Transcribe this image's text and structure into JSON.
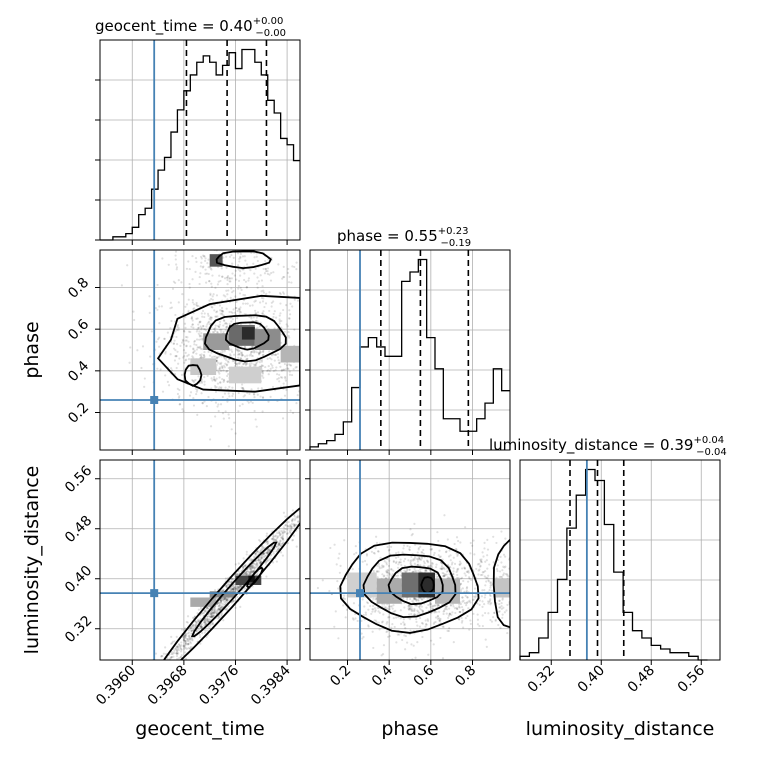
{
  "chart_data": {
    "type": "corner",
    "parameters": [
      "geocent_time",
      "phase",
      "luminosity_distance"
    ],
    "truths": {
      "geocent_time": 0.39634,
      "phase": 0.26,
      "luminosity_distance": 0.377
    },
    "truth_color": "#4682b4",
    "titles": [
      {
        "param": "geocent_time",
        "text": "geocent_time = 0.40",
        "sup": "+0.00",
        "sub": "−0.00"
      },
      {
        "param": "phase",
        "text": "phase = 0.55",
        "sup": "+0.23",
        "sub": "−0.19"
      },
      {
        "param": "luminosity_distance",
        "text": "luminosity_distance = 0.39",
        "sup": "+0.04",
        "sub": "−0.04"
      }
    ],
    "axis_labels": {
      "x": [
        "geocent_time",
        "phase",
        "luminosity_distance"
      ],
      "y": [
        "phase",
        "luminosity_distance"
      ]
    },
    "ranges": {
      "geocent_time": [
        0.3955,
        0.3986
      ],
      "phase": [
        0.02,
        0.98
      ],
      "luminosity_distance": [
        0.27,
        0.59
      ]
    },
    "ticks": {
      "geocent_time": [
        "0.3960",
        "0.3968",
        "0.3976",
        "0.3984"
      ],
      "phase": [
        "0.2",
        "0.4",
        "0.6",
        "0.8"
      ],
      "luminosity_distance": [
        "0.32",
        "0.40",
        "0.48",
        "0.56"
      ]
    },
    "histograms": {
      "geocent_time": {
        "edges": [
          0.3955,
          0.3956,
          0.3957,
          0.3958,
          0.3959,
          0.396,
          0.3961,
          0.3962,
          0.3963,
          0.3964,
          0.3965,
          0.3966,
          0.3967,
          0.3968,
          0.3969,
          0.397,
          0.3971,
          0.3972,
          0.3973,
          0.3974,
          0.3975,
          0.3976,
          0.3977,
          0.3978,
          0.3979,
          0.398,
          0.3981,
          0.3982,
          0.3983,
          0.3984,
          0.3985,
          0.3986
        ],
        "counts": [
          0,
          0,
          1,
          1,
          2,
          4,
          8,
          10,
          16,
          22,
          26,
          34,
          41,
          47,
          52,
          56,
          58,
          56,
          52,
          55,
          59,
          54,
          60,
          60,
          56,
          52,
          44,
          40,
          32,
          30,
          25
        ],
        "quantiles": [
          0.39684,
          0.39747,
          0.39808
        ]
      },
      "phase": {
        "edges": [
          0.02,
          0.06,
          0.1,
          0.14,
          0.18,
          0.22,
          0.26,
          0.3,
          0.34,
          0.38,
          0.42,
          0.46,
          0.5,
          0.54,
          0.58,
          0.62,
          0.66,
          0.7,
          0.74,
          0.78,
          0.82,
          0.86,
          0.9,
          0.94,
          0.98
        ],
        "counts": [
          1,
          2,
          3,
          5,
          9,
          20,
          33,
          36,
          33,
          30,
          30,
          54,
          57,
          61,
          36,
          26,
          10,
          10,
          6,
          6,
          10,
          15,
          26,
          19
        ],
        "quantiles": [
          0.36,
          0.55,
          0.78
        ]
      },
      "luminosity_distance": {
        "edges": [
          0.27,
          0.285,
          0.3,
          0.315,
          0.33,
          0.345,
          0.36,
          0.375,
          0.39,
          0.405,
          0.42,
          0.435,
          0.45,
          0.465,
          0.48,
          0.495,
          0.51,
          0.525,
          0.54,
          0.555,
          0.57
        ],
        "counts": [
          1,
          2,
          6,
          13,
          22,
          36,
          45,
          52,
          49,
          37,
          24,
          13,
          8,
          6,
          4,
          3,
          2,
          2,
          1,
          0
        ],
        "quantiles": [
          0.35,
          0.394,
          0.436
        ]
      }
    }
  }
}
